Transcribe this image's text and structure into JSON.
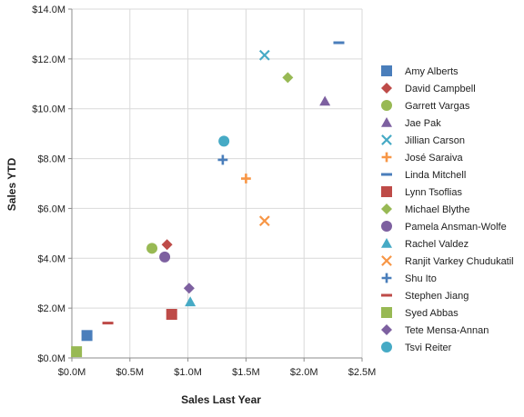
{
  "chart_data": {
    "type": "scatter",
    "title": "",
    "xlabel": "Sales Last Year",
    "ylabel": "Sales YTD",
    "xlim": [
      0,
      2500000
    ],
    "ylim": [
      0,
      14000000
    ],
    "grid": true,
    "legend_position": "right",
    "x_ticks": [
      0,
      500000,
      1000000,
      1500000,
      2000000,
      2500000
    ],
    "x_tick_labels": [
      "$0.0M",
      "$0.5M",
      "$1.0M",
      "$1.5M",
      "$2.0M",
      "$2.5M"
    ],
    "y_ticks": [
      0,
      2000000,
      4000000,
      6000000,
      8000000,
      10000000,
      12000000,
      14000000
    ],
    "y_tick_labels": [
      "$0.0M",
      "$2.0M",
      "$4.0M",
      "$6.0M",
      "$8.0M",
      "$10.0M",
      "$12.0M",
      "$14.0M"
    ],
    "series": [
      {
        "name": "Amy Alberts",
        "marker": "square",
        "color": "#4a7ebb",
        "x": 130000,
        "y": 900000
      },
      {
        "name": "David Campbell",
        "marker": "diamond",
        "color": "#be4b48",
        "x": 820000,
        "y": 4550000
      },
      {
        "name": "Garrett Vargas",
        "marker": "circle",
        "color": "#98b954",
        "x": 690000,
        "y": 4400000
      },
      {
        "name": "Jae Pak",
        "marker": "triangle",
        "color": "#7d60a0",
        "x": 2180000,
        "y": 10300000
      },
      {
        "name": "Jillian Carson",
        "marker": "x",
        "color": "#46aac5",
        "x": 1660000,
        "y": 12150000
      },
      {
        "name": "José Saraiva",
        "marker": "plus",
        "color": "#f79646",
        "x": 1500000,
        "y": 7200000
      },
      {
        "name": "Linda Mitchell",
        "marker": "dash",
        "color": "#4a7ebb",
        "x": 2300000,
        "y": 12650000
      },
      {
        "name": "Lynn Tsoflias",
        "marker": "square",
        "color": "#be4b48",
        "x": 860000,
        "y": 1750000
      },
      {
        "name": "Michael Blythe",
        "marker": "diamond",
        "color": "#98b954",
        "x": 1860000,
        "y": 11250000
      },
      {
        "name": "Pamela Ansman-Wolfe",
        "marker": "circle",
        "color": "#7d60a0",
        "x": 800000,
        "y": 4050000
      },
      {
        "name": "Rachel Valdez",
        "marker": "triangle",
        "color": "#46aac5",
        "x": 1020000,
        "y": 2250000
      },
      {
        "name": "Ranjit Varkey Chudukatil",
        "marker": "x",
        "color": "#f79646",
        "x": 1660000,
        "y": 5500000
      },
      {
        "name": "Shu Ito",
        "marker": "plus",
        "color": "#4a7ebb",
        "x": 1300000,
        "y": 7950000
      },
      {
        "name": "Stephen Jiang",
        "marker": "dash",
        "color": "#be4b48",
        "x": 310000,
        "y": 1400000
      },
      {
        "name": "Syed Abbas",
        "marker": "square",
        "color": "#98b954",
        "x": 40000,
        "y": 250000
      },
      {
        "name": "Tete Mensa-Annan",
        "marker": "diamond",
        "color": "#7d60a0",
        "x": 1010000,
        "y": 2800000
      },
      {
        "name": "Tsvi Reiter",
        "marker": "circle",
        "color": "#46aac5",
        "x": 1310000,
        "y": 8700000
      }
    ]
  }
}
